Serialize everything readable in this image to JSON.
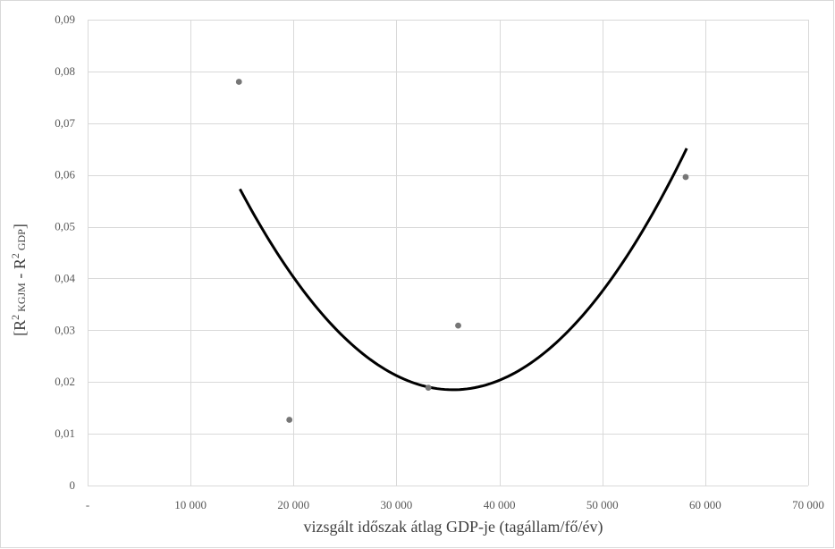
{
  "chart_data": {
    "type": "scatter",
    "xlabel": "vizsgált időszak átlag GDP-je (tagállam/fő/év)",
    "ylabel": {
      "prefix": "[R",
      "sup1": "2",
      "sub1": " KGJM",
      "mid": " - R",
      "sup2": "2",
      "sub2": " GDP",
      "suffix": "]"
    },
    "xlim": [
      0,
      70000
    ],
    "ylim": [
      0,
      0.09
    ],
    "x_ticks": [
      0,
      10000,
      20000,
      30000,
      40000,
      50000,
      60000,
      70000
    ],
    "x_tick_labels": [
      "-",
      "10 000",
      "20 000",
      "30 000",
      "40 000",
      "50 000",
      "60 000",
      "70 000"
    ],
    "y_ticks": [
      0,
      0.01,
      0.02,
      0.03,
      0.04,
      0.05,
      0.06,
      0.07,
      0.08,
      0.09
    ],
    "y_tick_labels": [
      "0",
      "0,01",
      "0,02",
      "0,03",
      "0,04",
      "0,05",
      "0,06",
      "0,07",
      "0,08",
      "0,09"
    ],
    "grid": true,
    "points": [
      {
        "x": 14700,
        "y": 0.078
      },
      {
        "x": 19600,
        "y": 0.0127
      },
      {
        "x": 33100,
        "y": 0.0189
      },
      {
        "x": 36000,
        "y": 0.0309
      },
      {
        "x": 58100,
        "y": 0.0596
      }
    ],
    "trendline": {
      "type": "polynomial-2",
      "x_range": [
        14800,
        58200
      ],
      "vertex_x": 35500,
      "vertex_y": 0.0185,
      "curvature": 9.05e-11
    }
  }
}
